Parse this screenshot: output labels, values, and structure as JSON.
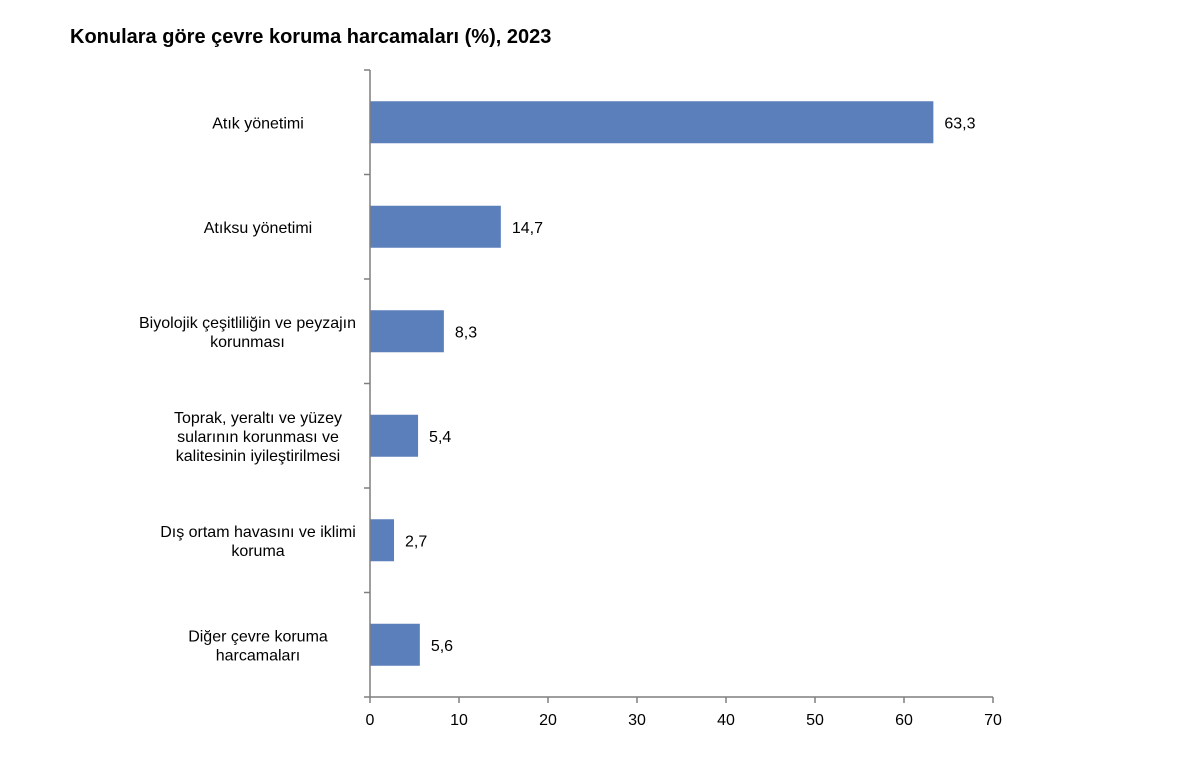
{
  "chart_data": {
    "type": "bar",
    "orientation": "horizontal",
    "title": "Konulara göre çevre koruma harcamaları (%), 2023",
    "categories": [
      [
        "Atık yönetimi"
      ],
      [
        "Atıksu yönetimi"
      ],
      [
        "Biyolojik çeşitliliğin ve peyzajın",
        "korunması"
      ],
      [
        "Toprak, yeraltı ve yüzey",
        "sularının korunması ve",
        "kalitesinin iyileştirilmesi"
      ],
      [
        "Dış ortam havasını ve iklimi",
        "koruma"
      ],
      [
        "Diğer çevre koruma",
        "harcamaları"
      ]
    ],
    "values": [
      63.3,
      14.7,
      8.3,
      5.4,
      2.7,
      5.6
    ],
    "value_labels": [
      "63,3",
      "14,7",
      "8,3",
      "5,4",
      "2,7",
      "5,6"
    ],
    "xlim": [
      0,
      70
    ],
    "xticks": [
      0,
      10,
      20,
      30,
      40,
      50,
      60,
      70
    ],
    "xlabel": "",
    "ylabel": "",
    "grid": false,
    "legend": "none",
    "bar_color": "#5b7fba",
    "axis_color": "#7f7f7f"
  }
}
